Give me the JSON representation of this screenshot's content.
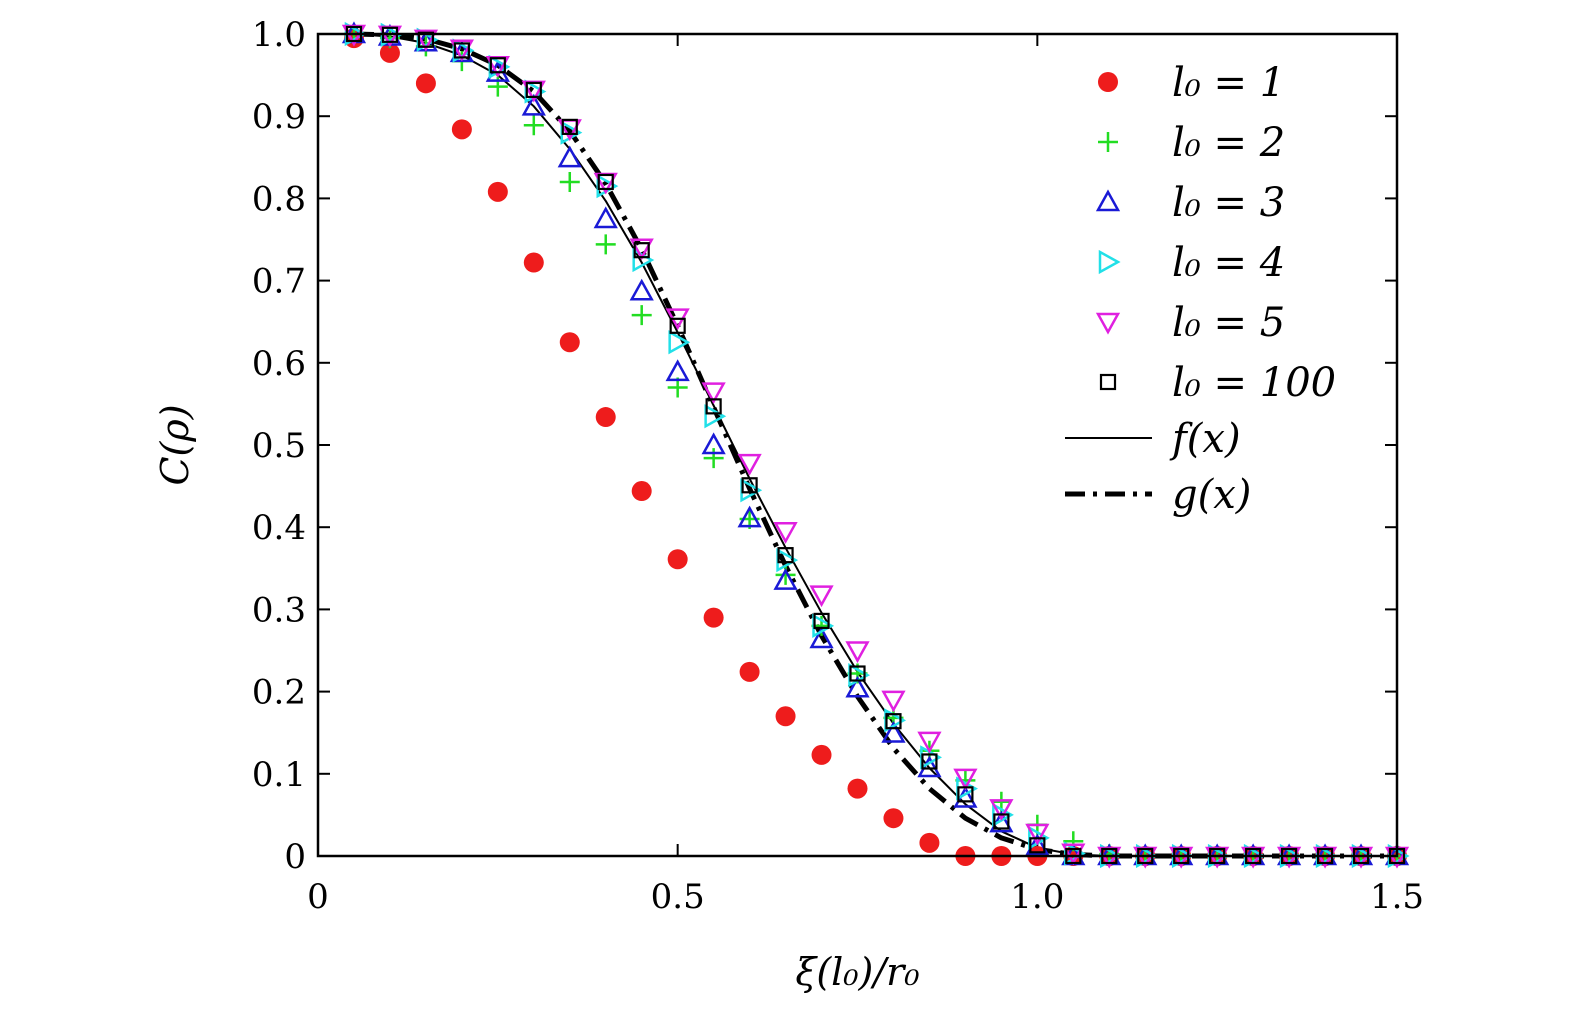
{
  "chart_data": {
    "type": "scatter",
    "xlabel": "ξ(l₀)/r₀",
    "ylabel": "C(ρ)",
    "xlim": [
      0,
      1.5
    ],
    "ylim": [
      0,
      1.0
    ],
    "xticks": [
      0,
      0.5,
      1.0,
      1.5
    ],
    "xtick_labels": [
      "0",
      "0.5",
      "1.0",
      "1.5"
    ],
    "yticks": [
      0,
      0.1,
      0.2,
      0.3,
      0.4,
      0.5,
      0.6,
      0.7,
      0.8,
      0.9,
      1.0
    ],
    "ytick_labels": [
      "0",
      "0.1",
      "0.2",
      "0.3",
      "0.4",
      "0.5",
      "0.6",
      "0.7",
      "0.8",
      "0.9",
      "1.0"
    ],
    "legend_position": "top-right",
    "x": [
      0.05,
      0.1,
      0.15,
      0.2,
      0.25,
      0.3,
      0.35,
      0.4,
      0.45,
      0.5,
      0.55,
      0.6,
      0.65,
      0.7,
      0.75,
      0.8,
      0.85,
      0.9,
      0.95,
      1.0,
      1.05,
      1.1,
      1.15,
      1.2,
      1.25,
      1.3,
      1.35,
      1.4,
      1.45,
      1.5
    ],
    "series": [
      {
        "name": "l₀ = 1",
        "marker": "filled-circle",
        "color": "#ee1c1c",
        "values": [
          0.995,
          0.977,
          0.94,
          0.884,
          0.808,
          0.722,
          0.625,
          0.534,
          0.444,
          0.361,
          0.29,
          0.224,
          0.17,
          0.123,
          0.082,
          0.046,
          0.016,
          0.0,
          0.0,
          0.0,
          0.0,
          0.0,
          0.0,
          0.0,
          0.0,
          0.0,
          0.0,
          0.0,
          0.0,
          0.0
        ]
      },
      {
        "name": "l₀ = 2",
        "marker": "plus",
        "color": "#22dd22",
        "values": [
          1.0,
          0.995,
          0.985,
          0.967,
          0.936,
          0.889,
          0.82,
          0.744,
          0.658,
          0.57,
          0.484,
          0.41,
          0.342,
          0.28,
          0.222,
          0.168,
          0.128,
          0.092,
          0.066,
          0.038,
          0.018,
          0.002,
          0.0,
          0.0,
          0.0,
          0.0,
          0.0,
          0.0,
          0.0,
          0.0
        ]
      },
      {
        "name": "l₀ = 3",
        "marker": "triangle-up",
        "color": "#1a1ad6",
        "values": [
          1.0,
          0.997,
          0.99,
          0.977,
          0.953,
          0.912,
          0.849,
          0.775,
          0.687,
          0.589,
          0.5,
          0.411,
          0.335,
          0.264,
          0.204,
          0.149,
          0.107,
          0.07,
          0.04,
          0.012,
          0.0,
          0.0,
          0.0,
          0.0,
          0.0,
          0.0,
          0.0,
          0.0,
          0.0,
          0.0
        ]
      },
      {
        "name": "l₀ = 4",
        "marker": "triangle-right",
        "color": "#22e0e8",
        "values": [
          1.0,
          0.999,
          0.993,
          0.98,
          0.96,
          0.93,
          0.88,
          0.815,
          0.725,
          0.625,
          0.535,
          0.445,
          0.36,
          0.28,
          0.22,
          0.165,
          0.12,
          0.082,
          0.05,
          0.022,
          0.003,
          0.0,
          0.0,
          0.0,
          0.0,
          0.0,
          0.0,
          0.0,
          0.0,
          0.0
        ]
      },
      {
        "name": "l₀ = 5",
        "marker": "triangle-down",
        "color": "#e020e0",
        "values": [
          1.0,
          0.999,
          0.994,
          0.982,
          0.962,
          0.932,
          0.885,
          0.82,
          0.74,
          0.655,
          0.565,
          0.478,
          0.395,
          0.318,
          0.25,
          0.19,
          0.14,
          0.095,
          0.058,
          0.028,
          0.004,
          0.0,
          0.0,
          0.0,
          0.0,
          0.0,
          0.0,
          0.0,
          0.0,
          0.0
        ]
      },
      {
        "name": "l₀ = 100",
        "marker": "square",
        "color": "#000000",
        "values": [
          1.0,
          0.999,
          0.993,
          0.98,
          0.962,
          0.932,
          0.887,
          0.82,
          0.737,
          0.645,
          0.547,
          0.451,
          0.366,
          0.286,
          0.222,
          0.164,
          0.115,
          0.075,
          0.042,
          0.013,
          0.0,
          0.0,
          0.0,
          0.0,
          0.0,
          0.0,
          0.0,
          0.0,
          0.0,
          0.0
        ]
      }
    ],
    "curves": [
      {
        "name": "f(x)",
        "style": "solid",
        "color": "#000000",
        "x": [
          0.05,
          0.1,
          0.15,
          0.2,
          0.25,
          0.3,
          0.35,
          0.4,
          0.45,
          0.5,
          0.55,
          0.6,
          0.65,
          0.7,
          0.75,
          0.8,
          0.85,
          0.9,
          0.95,
          1.0,
          1.05,
          1.1,
          1.15,
          1.2,
          1.3,
          1.4,
          1.5
        ],
        "values": [
          1.0,
          0.997,
          0.989,
          0.974,
          0.95,
          0.912,
          0.86,
          0.797,
          0.722,
          0.637,
          0.548,
          0.459,
          0.375,
          0.296,
          0.224,
          0.161,
          0.107,
          0.063,
          0.03,
          0.01,
          0.002,
          0.0,
          0.0,
          0.0,
          0.0,
          0.0,
          0.0
        ]
      },
      {
        "name": "g(x)",
        "style": "dash-dot",
        "color": "#000000",
        "x": [
          0.05,
          0.1,
          0.15,
          0.2,
          0.25,
          0.3,
          0.35,
          0.4,
          0.45,
          0.5,
          0.55,
          0.6,
          0.65,
          0.7,
          0.75,
          0.8,
          0.85,
          0.9,
          0.95,
          1.0,
          1.05,
          1.1,
          1.15,
          1.2,
          1.3,
          1.4,
          1.5
        ],
        "values": [
          1.0,
          0.999,
          0.994,
          0.982,
          0.962,
          0.93,
          0.882,
          0.818,
          0.738,
          0.645,
          0.546,
          0.447,
          0.353,
          0.268,
          0.194,
          0.131,
          0.082,
          0.046,
          0.022,
          0.008,
          0.002,
          0.0,
          0.0,
          0.0,
          0.0,
          0.0,
          0.0
        ]
      }
    ]
  }
}
